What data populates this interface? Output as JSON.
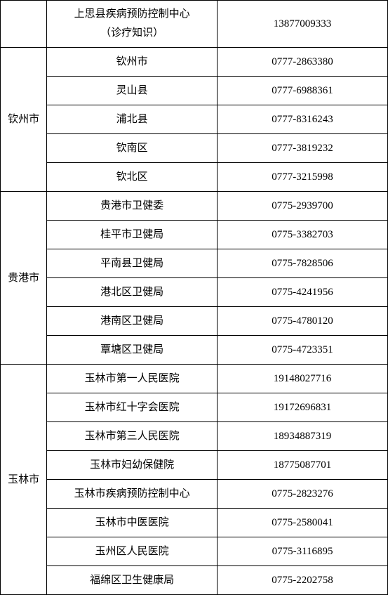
{
  "table": {
    "columns": {
      "region_width": "12%",
      "name_width": "44%",
      "phone_width": "44%"
    },
    "colors": {
      "border": "#000000",
      "background": "#ffffff",
      "text": "#000000"
    },
    "font": {
      "family": "SimSun",
      "size": 15
    },
    "groups": [
      {
        "region": "",
        "rows": [
          {
            "name_line1": "上思县疾病预防控制中心",
            "name_line2": "（诊疗知识）",
            "phone": "13877009333",
            "multiline": true
          }
        ]
      },
      {
        "region": "钦州市",
        "rows": [
          {
            "name": "钦州市",
            "phone": "0777-2863380"
          },
          {
            "name": "灵山县",
            "phone": "0777-6988361"
          },
          {
            "name": "浦北县",
            "phone": "0777-8316243"
          },
          {
            "name": "钦南区",
            "phone": "0777-3819232"
          },
          {
            "name": "钦北区",
            "phone": "0777-3215998"
          }
        ]
      },
      {
        "region": "贵港市",
        "rows": [
          {
            "name": "贵港市卫健委",
            "phone": "0775-2939700"
          },
          {
            "name": "桂平市卫健局",
            "phone": "0775-3382703"
          },
          {
            "name": "平南县卫健局",
            "phone": "0775-7828506"
          },
          {
            "name": "港北区卫健局",
            "phone": "0775-4241956"
          },
          {
            "name": "港南区卫健局",
            "phone": "0775-4780120"
          },
          {
            "name": "覃塘区卫健局",
            "phone": "0775-4723351"
          }
        ]
      },
      {
        "region": "玉林市",
        "rows": [
          {
            "name": "玉林市第一人民医院",
            "phone": "19148027716"
          },
          {
            "name": "玉林市红十字会医院",
            "phone": "19172696831"
          },
          {
            "name": "玉林市第三人民医院",
            "phone": "18934887319"
          },
          {
            "name": "玉林市妇幼保健院",
            "phone": "18775087701"
          },
          {
            "name": "玉林市疾病预防控制中心",
            "phone": "0775-2823276"
          },
          {
            "name": "玉林市中医医院",
            "phone": "0775-2580041"
          },
          {
            "name": "玉州区人民医院",
            "phone": "0775-3116895"
          },
          {
            "name": "福绵区卫生健康局",
            "phone": "0775-2202758"
          }
        ]
      }
    ]
  }
}
